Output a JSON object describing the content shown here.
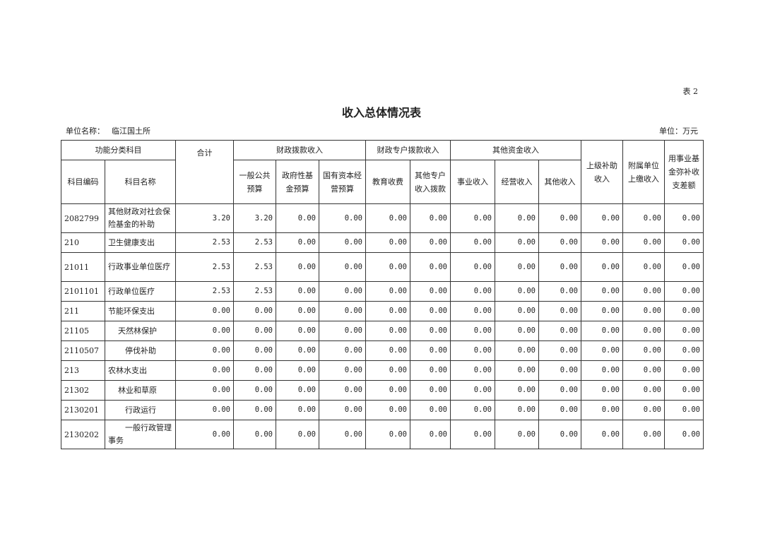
{
  "table_tag": "表 2",
  "title": "收入总体情况表",
  "unit_name_label": "单位名称：",
  "unit_name": "临江国土所",
  "unit_label": "单位：万元",
  "headers": {
    "group_function": "功能分类科目",
    "code": "科目编码",
    "name": "科目名称",
    "total": "合计",
    "group_fiscal": "财政拨款收入",
    "general_budget": "一般公共预算",
    "gov_fund": "政府性基金预算",
    "state_capital": "国有资本经营预算",
    "group_special": "财政专户拨款收入",
    "education_fee": "教育收费",
    "other_special": "其他专户收入拨款",
    "group_other": "其他资金收入",
    "business_income": "事业收入",
    "operating_income": "经营收入",
    "other_income": "其他收入",
    "superior_subsidy": "上级补助收入",
    "affiliated_payment": "附属单位上缴收入",
    "fund_offset": "用事业基金弥补收支差额"
  },
  "rows": [
    {
      "code": "2082799",
      "name": "其他财政对社会保险基金的补助",
      "indent": 0,
      "values": [
        "3.20",
        "3.20",
        "0.00",
        "0.00",
        "0.00",
        "0.00",
        "0.00",
        "0.00",
        "0.00",
        "0.00",
        "0.00",
        "0.00"
      ]
    },
    {
      "code": "210",
      "name": "卫生健康支出",
      "indent": 0,
      "values": [
        "2.53",
        "2.53",
        "0.00",
        "0.00",
        "0.00",
        "0.00",
        "0.00",
        "0.00",
        "0.00",
        "0.00",
        "0.00",
        "0.00"
      ]
    },
    {
      "code": "21011",
      "name": "行政事业单位医疗",
      "indent": 0,
      "values": [
        "2.53",
        "2.53",
        "0.00",
        "0.00",
        "0.00",
        "0.00",
        "0.00",
        "0.00",
        "0.00",
        "0.00",
        "0.00",
        "0.00"
      ]
    },
    {
      "code": "2101101",
      "name": "行政单位医疗",
      "indent": 0,
      "values": [
        "2.53",
        "2.53",
        "0.00",
        "0.00",
        "0.00",
        "0.00",
        "0.00",
        "0.00",
        "0.00",
        "0.00",
        "0.00",
        "0.00"
      ]
    },
    {
      "code": "211",
      "name": "节能环保支出",
      "indent": 0,
      "values": [
        "0.00",
        "0.00",
        "0.00",
        "0.00",
        "0.00",
        "0.00",
        "0.00",
        "0.00",
        "0.00",
        "0.00",
        "0.00",
        "0.00"
      ]
    },
    {
      "code": "21105",
      "name": "天然林保护",
      "indent": 1,
      "values": [
        "0.00",
        "0.00",
        "0.00",
        "0.00",
        "0.00",
        "0.00",
        "0.00",
        "0.00",
        "0.00",
        "0.00",
        "0.00",
        "0.00"
      ]
    },
    {
      "code": "2110507",
      "name": "停伐补助",
      "indent": 2,
      "values": [
        "0.00",
        "0.00",
        "0.00",
        "0.00",
        "0.00",
        "0.00",
        "0.00",
        "0.00",
        "0.00",
        "0.00",
        "0.00",
        "0.00"
      ]
    },
    {
      "code": "213",
      "name": "农林水支出",
      "indent": 0,
      "values": [
        "0.00",
        "0.00",
        "0.00",
        "0.00",
        "0.00",
        "0.00",
        "0.00",
        "0.00",
        "0.00",
        "0.00",
        "0.00",
        "0.00"
      ]
    },
    {
      "code": "21302",
      "name": "林业和草原",
      "indent": 1,
      "values": [
        "0.00",
        "0.00",
        "0.00",
        "0.00",
        "0.00",
        "0.00",
        "0.00",
        "0.00",
        "0.00",
        "0.00",
        "0.00",
        "0.00"
      ]
    },
    {
      "code": "2130201",
      "name": "行政运行",
      "indent": 2,
      "values": [
        "0.00",
        "0.00",
        "0.00",
        "0.00",
        "0.00",
        "0.00",
        "0.00",
        "0.00",
        "0.00",
        "0.00",
        "0.00",
        "0.00"
      ]
    },
    {
      "code": "2130202",
      "name": "一般行政管理事务",
      "indent": 2,
      "values": [
        "0.00",
        "0.00",
        "0.00",
        "0.00",
        "0.00",
        "0.00",
        "0.00",
        "0.00",
        "0.00",
        "0.00",
        "0.00",
        "0.00"
      ]
    }
  ]
}
